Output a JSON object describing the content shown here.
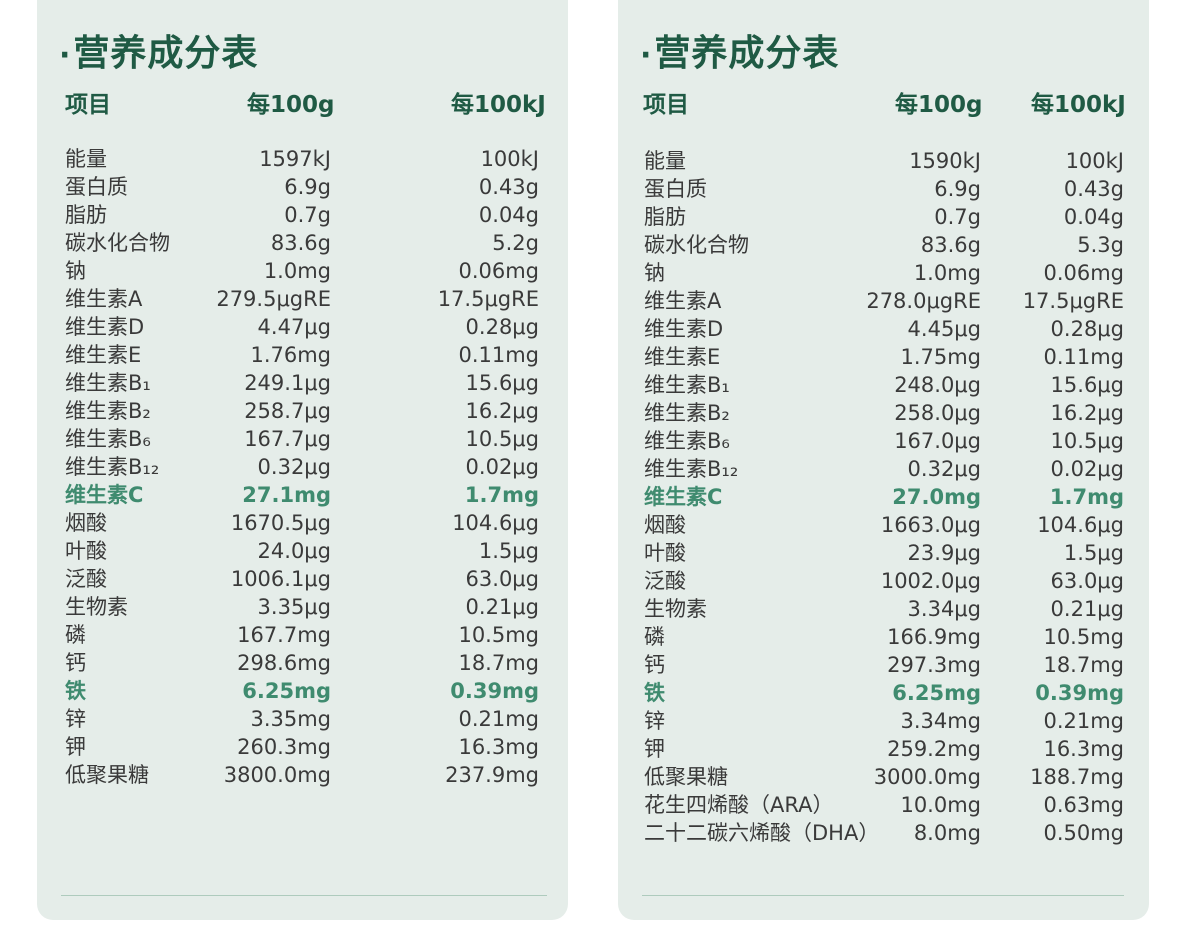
{
  "left": {
    "title": "营养成分表",
    "headers": [
      "项目",
      "每100g",
      "每100kJ"
    ],
    "rows": [
      {
        "name": "能量",
        "per100g": "1597kJ",
        "per100kJ": "100kJ"
      },
      {
        "name": "蛋白质",
        "per100g": "6.9g",
        "per100kJ": "0.43g"
      },
      {
        "name": "脂肪",
        "per100g": "0.7g",
        "per100kJ": "0.04g"
      },
      {
        "name": "碳水化合物",
        "per100g": "83.6g",
        "per100kJ": "5.2g"
      },
      {
        "name": "钠",
        "per100g": "1.0mg",
        "per100kJ": "0.06mg"
      },
      {
        "name": "维生素A",
        "per100g": "279.5μgRE",
        "per100kJ": "17.5μgRE"
      },
      {
        "name": "维生素D",
        "per100g": "4.47μg",
        "per100kJ": "0.28μg"
      },
      {
        "name": "维生素E",
        "per100g": "1.76mg",
        "per100kJ": "0.11mg"
      },
      {
        "name": "维生素B₁",
        "per100g": "249.1μg",
        "per100kJ": "15.6μg"
      },
      {
        "name": "维生素B₂",
        "per100g": "258.7μg",
        "per100kJ": "16.2μg"
      },
      {
        "name": "维生素B₆",
        "per100g": "167.7μg",
        "per100kJ": "10.5μg"
      },
      {
        "name": "维生素B₁₂",
        "per100g": "0.32μg",
        "per100kJ": "0.02μg"
      },
      {
        "name": "维生素C",
        "per100g": "27.1mg",
        "per100kJ": "1.7mg",
        "highlight": true
      },
      {
        "name": "烟酸",
        "per100g": "1670.5μg",
        "per100kJ": "104.6μg"
      },
      {
        "name": "叶酸",
        "per100g": "24.0μg",
        "per100kJ": "1.5μg"
      },
      {
        "name": "泛酸",
        "per100g": "1006.1μg",
        "per100kJ": "63.0μg"
      },
      {
        "name": "生物素",
        "per100g": "3.35μg",
        "per100kJ": "0.21μg"
      },
      {
        "name": "磷",
        "per100g": "167.7mg",
        "per100kJ": "10.5mg"
      },
      {
        "name": "钙",
        "per100g": "298.6mg",
        "per100kJ": "18.7mg"
      },
      {
        "name": "铁",
        "per100g": "6.25mg",
        "per100kJ": "0.39mg",
        "highlight": true
      },
      {
        "name": "锌",
        "per100g": "3.35mg",
        "per100kJ": "0.21mg"
      },
      {
        "name": "钾",
        "per100g": "260.3mg",
        "per100kJ": "16.3mg"
      },
      {
        "name": "低聚果糖",
        "per100g": "3800.0mg",
        "per100kJ": "237.9mg"
      }
    ]
  },
  "right": {
    "title": "营养成分表",
    "headers": [
      "项目",
      "每100g",
      "每100kJ"
    ],
    "rows": [
      {
        "name": "能量",
        "per100g": "1590kJ",
        "per100kJ": "100kJ"
      },
      {
        "name": "蛋白质",
        "per100g": "6.9g",
        "per100kJ": "0.43g"
      },
      {
        "name": "脂肪",
        "per100g": "0.7g",
        "per100kJ": "0.04g"
      },
      {
        "name": "碳水化合物",
        "per100g": "83.6g",
        "per100kJ": "5.3g"
      },
      {
        "name": "钠",
        "per100g": "1.0mg",
        "per100kJ": "0.06mg"
      },
      {
        "name": "维生素A",
        "per100g": "278.0μgRE",
        "per100kJ": "17.5μgRE"
      },
      {
        "name": "维生素D",
        "per100g": "4.45μg",
        "per100kJ": "0.28μg"
      },
      {
        "name": "维生素E",
        "per100g": "1.75mg",
        "per100kJ": "0.11mg"
      },
      {
        "name": "维生素B₁",
        "per100g": "248.0μg",
        "per100kJ": "15.6μg"
      },
      {
        "name": "维生素B₂",
        "per100g": "258.0μg",
        "per100kJ": "16.2μg"
      },
      {
        "name": "维生素B₆",
        "per100g": "167.0μg",
        "per100kJ": "10.5μg"
      },
      {
        "name": "维生素B₁₂",
        "per100g": "0.32μg",
        "per100kJ": "0.02μg"
      },
      {
        "name": "维生素C",
        "per100g": "27.0mg",
        "per100kJ": "1.7mg",
        "highlight": true
      },
      {
        "name": "烟酸",
        "per100g": "1663.0μg",
        "per100kJ": "104.6μg"
      },
      {
        "name": "叶酸",
        "per100g": "23.9μg",
        "per100kJ": "1.5μg"
      },
      {
        "name": "泛酸",
        "per100g": "1002.0μg",
        "per100kJ": "63.0μg"
      },
      {
        "name": "生物素",
        "per100g": "3.34μg",
        "per100kJ": "0.21μg"
      },
      {
        "name": "磷",
        "per100g": "166.9mg",
        "per100kJ": "10.5mg"
      },
      {
        "name": "钙",
        "per100g": "297.3mg",
        "per100kJ": "18.7mg"
      },
      {
        "name": "铁",
        "per100g": "6.25mg",
        "per100kJ": "0.39mg",
        "highlight": true
      },
      {
        "name": "锌",
        "per100g": "3.34mg",
        "per100kJ": "0.21mg"
      },
      {
        "name": "钾",
        "per100g": "259.2mg",
        "per100kJ": "16.3mg"
      },
      {
        "name": "低聚果糖",
        "per100g": "3000.0mg",
        "per100kJ": "188.7mg"
      },
      {
        "name": "花生四烯酸（ARA）",
        "per100g": "10.0mg",
        "per100kJ": "0.63mg"
      },
      {
        "name": "二十二碳六烯酸（DHA）",
        "per100g": "8.0mg",
        "per100kJ": "0.50mg"
      }
    ]
  }
}
